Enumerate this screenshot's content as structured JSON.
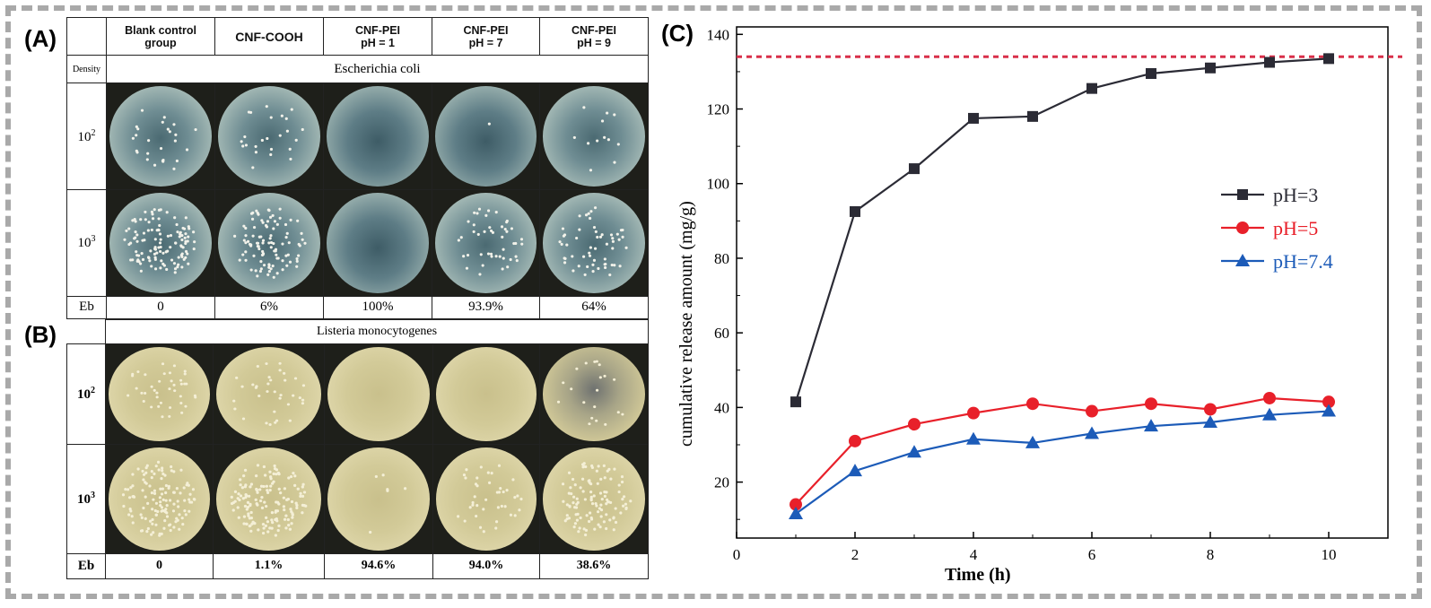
{
  "panels": {
    "a": "(A)",
    "b": "(B)",
    "c": "(C)"
  },
  "panel_a": {
    "headers": [
      {
        "line1": "Blank control",
        "line2": "group"
      },
      {
        "line1": "CNF-COOH",
        "line2": ""
      },
      {
        "line1": "CNF-PEI",
        "line2": "pH = 1"
      },
      {
        "line1": "CNF-PEI",
        "line2": "pH = 7"
      },
      {
        "line1": "CNF-PEI",
        "line2": "pH = 9"
      }
    ],
    "density_label": "Density",
    "species": "Escherichia coli",
    "rows": [
      {
        "base": "10",
        "exp": "2"
      },
      {
        "base": "10",
        "exp": "3"
      }
    ],
    "eb_label": "Eb",
    "eb_values": [
      "0",
      "6%",
      "100%",
      "93.9%",
      "64%"
    ]
  },
  "panel_b": {
    "species": "Listeria monocytogenes",
    "rows": [
      {
        "base": "10",
        "exp": "2"
      },
      {
        "base": "10",
        "exp": "3"
      }
    ],
    "eb_label": "Eb",
    "eb_values": [
      "0",
      "1.1%",
      "94.6%",
      "94.0%",
      "38.6%"
    ]
  },
  "chart_data": {
    "type": "line",
    "xlabel": "Time (h)",
    "ylabel": "cumulative release amount (mg/g)",
    "xlim": [
      0,
      11
    ],
    "ylim": [
      5,
      142
    ],
    "xticks": [
      0,
      2,
      4,
      6,
      8,
      10
    ],
    "yticks": [
      20,
      40,
      60,
      80,
      100,
      120,
      140
    ],
    "grid": false,
    "legend_position": "right",
    "reference_line": {
      "y": 134,
      "color": "#d9304a",
      "style": "dashed"
    },
    "x": [
      1,
      2,
      3,
      4,
      5,
      6,
      7,
      8,
      9,
      10
    ],
    "series": [
      {
        "name": "pH=3",
        "color": "#2b2b35",
        "marker": "square",
        "values": [
          41.5,
          92.5,
          104,
          117.5,
          118,
          125.5,
          129.5,
          131,
          132.5,
          133.5
        ]
      },
      {
        "name": "pH=5",
        "color": "#e8202a",
        "marker": "circle",
        "values": [
          14,
          31,
          35.5,
          38.5,
          41,
          39,
          41,
          39.5,
          42.5,
          41.5
        ]
      },
      {
        "name": "pH=7.4",
        "color": "#1c5bb8",
        "marker": "triangle",
        "values": [
          11.5,
          23,
          28,
          31.5,
          30.5,
          33,
          35,
          36,
          38,
          39
        ]
      }
    ]
  }
}
